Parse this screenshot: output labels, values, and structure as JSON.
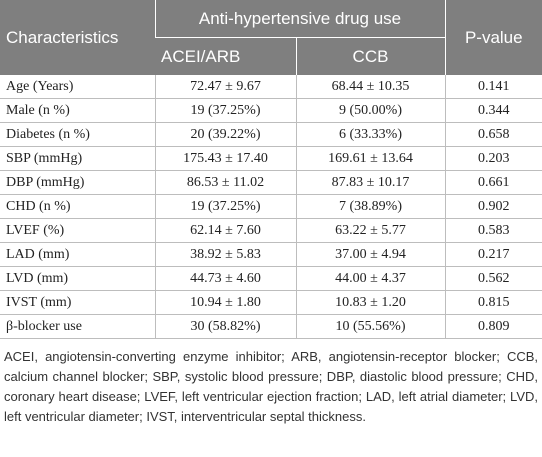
{
  "header": {
    "characteristics": "Characteristics",
    "group": "Anti-hypertensive drug use",
    "subgroups": [
      "ACEI/ARB",
      "CCB"
    ],
    "p_value": "P-value"
  },
  "table": {
    "rows": [
      [
        "Age (Years)",
        "72.47 ± 9.67",
        "68.44 ± 10.35",
        "0.141"
      ],
      [
        "Male (n %)",
        "19 (37.25%)",
        "9 (50.00%)",
        "0.344"
      ],
      [
        "Diabetes (n %)",
        "20 (39.22%)",
        "6 (33.33%)",
        "0.658"
      ],
      [
        "SBP (mmHg)",
        "175.43 ± 17.40",
        "169.61 ± 13.64",
        "0.203"
      ],
      [
        "DBP (mmHg)",
        "86.53 ± 11.02",
        "87.83 ± 10.17",
        "0.661"
      ],
      [
        "CHD (n %)",
        "19 (37.25%)",
        "7 (38.89%)",
        "0.902"
      ],
      [
        "LVEF (%)",
        "62.14 ± 7.60",
        "63.22 ± 5.77",
        "0.583"
      ],
      [
        "LAD (mm)",
        "38.92 ± 5.83",
        "37.00 ± 4.94",
        "0.217"
      ],
      [
        "LVD (mm)",
        "44.73 ± 4.60",
        "44.00 ± 4.37",
        "0.562"
      ],
      [
        "IVST (mm)",
        "10.94 ± 1.80",
        "10.83 ± 1.20",
        "0.815"
      ],
      [
        "β-blocker use",
        "30 (58.82%)",
        "10 (55.56%)",
        "0.809"
      ]
    ]
  },
  "footnote": "ACEI, angiotensin-converting enzyme inhibitor; ARB, angiotensin-receptor blocker; CCB, calcium channel blocker; SBP, systolic blood pressure; DBP, diastolic blood pressure; CHD, coronary heart disease; LVEF, left ventricular ejection fraction; LAD, left atrial diameter; LVD, left ventricular diameter; IVST, interventricular septal thickness."
}
